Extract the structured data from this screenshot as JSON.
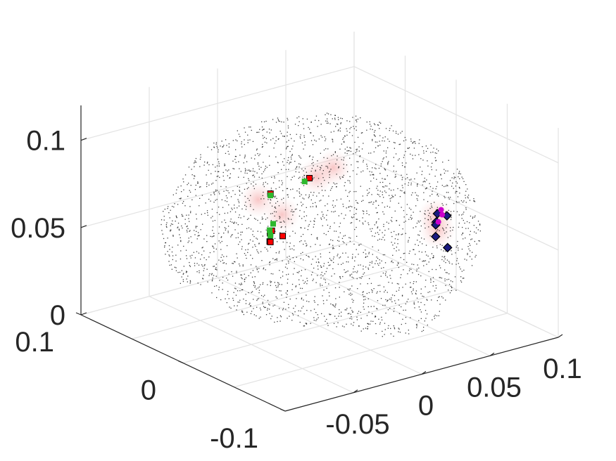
{
  "chart_data": {
    "type": "scatter",
    "projection": "3d",
    "grid": true,
    "title": "",
    "xlabel": "",
    "ylabel": "",
    "zlabel": "",
    "xlim": [
      -0.1,
      0.1
    ],
    "ylim": [
      -0.1,
      0.1
    ],
    "zlim": [
      0,
      0.12
    ],
    "xticks": [
      {
        "value": -0.1,
        "label": "-0.1"
      },
      {
        "value": 0,
        "label": "0"
      },
      {
        "value": 0.1,
        "label": "0.1"
      }
    ],
    "yticks": [
      {
        "value": -0.05,
        "label": "-0.05"
      },
      {
        "value": 0,
        "label": "0"
      },
      {
        "value": 0.05,
        "label": "0.05"
      },
      {
        "value": 0.1,
        "label": "0.1"
      }
    ],
    "zticks": [
      {
        "value": 0,
        "label": "0"
      },
      {
        "value": 0.05,
        "label": "0.05"
      },
      {
        "value": 0.1,
        "label": "0.1"
      }
    ],
    "series": [
      {
        "kind": "cloud",
        "marker": "dot",
        "color": "#000000",
        "description_shape": "brain surface",
        "count": 2600
      },
      {
        "kind": "glow",
        "color": "#f2a6a6",
        "points": [
          {
            "x": 0.0,
            "y": -0.045,
            "z": 0.082
          },
          {
            "x": -0.01,
            "y": -0.035,
            "z": 0.074
          },
          {
            "x": 0.01,
            "y": 0.005,
            "z": 0.082
          },
          {
            "x": 0.02,
            "y": 0.025,
            "z": 0.08
          },
          {
            "x": -0.015,
            "y": 0.075,
            "z": 0.043
          },
          {
            "x": 0.0,
            "y": 0.085,
            "z": 0.045
          }
        ]
      },
      {
        "kind": "markers",
        "marker": "square",
        "color": "#ff0000",
        "edge": "#000000",
        "points": [
          {
            "x": -0.018,
            "y": -0.05,
            "z": 0.064
          },
          {
            "x": -0.012,
            "y": -0.045,
            "z": 0.061
          },
          {
            "x": -0.005,
            "y": -0.04,
            "z": 0.063
          },
          {
            "x": 0.0,
            "y": -0.035,
            "z": 0.062
          },
          {
            "x": -0.02,
            "y": -0.042,
            "z": 0.066
          },
          {
            "x": 0.008,
            "y": -0.03,
            "z": 0.08
          },
          {
            "x": 0.01,
            "y": 0.0,
            "z": 0.082
          }
        ]
      },
      {
        "kind": "markers",
        "marker": "square",
        "color": "#2db82d",
        "points": [
          {
            "x": -0.012,
            "y": -0.043,
            "z": 0.071
          },
          {
            "x": -0.01,
            "y": -0.044,
            "z": 0.067
          },
          {
            "x": -0.008,
            "y": -0.042,
            "z": 0.063
          },
          {
            "x": 0.008,
            "y": -0.03,
            "z": 0.079
          },
          {
            "x": 0.012,
            "y": -0.002,
            "z": 0.08
          }
        ]
      },
      {
        "kind": "markers",
        "marker": "diamond",
        "color": "#1a1a80",
        "edge": "#000000",
        "points": [
          {
            "x": -0.02,
            "y": 0.07,
            "z": 0.042
          },
          {
            "x": -0.01,
            "y": 0.078,
            "z": 0.046
          },
          {
            "x": 0.0,
            "y": 0.085,
            "z": 0.04
          },
          {
            "x": -0.015,
            "y": 0.082,
            "z": 0.05
          },
          {
            "x": 0.005,
            "y": 0.09,
            "z": 0.044
          },
          {
            "x": -0.025,
            "y": 0.075,
            "z": 0.036
          }
        ]
      },
      {
        "kind": "markers",
        "marker": "circle",
        "color": "#cc00cc",
        "points": [
          {
            "x": -0.012,
            "y": 0.08,
            "z": 0.053
          },
          {
            "x": -0.02,
            "y": 0.072,
            "z": 0.05
          },
          {
            "x": -0.005,
            "y": 0.086,
            "z": 0.047
          }
        ]
      }
    ]
  }
}
